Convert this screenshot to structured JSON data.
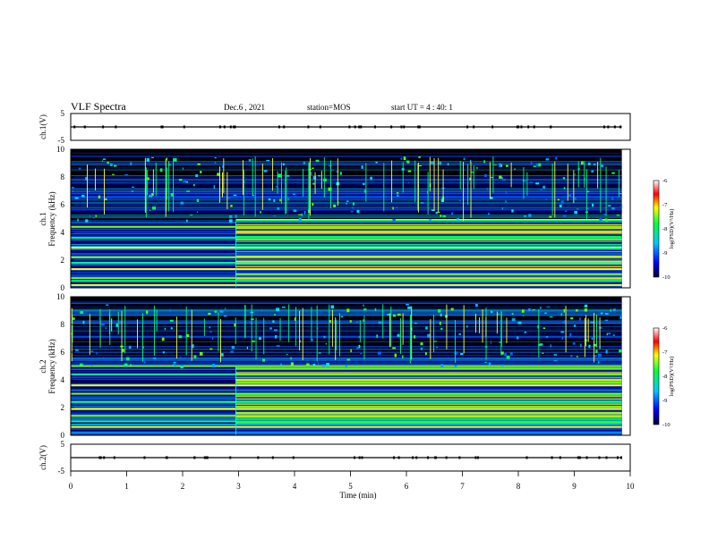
{
  "header": {
    "title": "VLF Spectra",
    "date": "Dec.6 , 2021",
    "station": "station=MOS",
    "start_ut": "start UT =  4 : 40: 1"
  },
  "chart_data": {
    "type": "heatmap",
    "xlabel": "Time (min)",
    "x_ticks": [
      "0",
      "1",
      "2",
      "3",
      "4",
      "5",
      "6",
      "7",
      "8",
      "9",
      "10"
    ],
    "xlim": [
      0,
      10
    ],
    "data_end_min": 9.85,
    "transition_min": 2.95,
    "panels": [
      {
        "id": "ch1_waveform",
        "ylabel": "ch.1(V)",
        "y_ticks": [
          "5",
          "-5"
        ],
        "ylim": [
          -5,
          5
        ],
        "baseline": 0
      },
      {
        "id": "ch1_spectrogram",
        "ylabel": "ch.1\nFrequency (kHz)",
        "y_ticks": [
          "0",
          "2",
          "4",
          "6",
          "8",
          "10"
        ],
        "ylim": [
          0,
          10
        ],
        "colorbar": {
          "label": "log(PSD)(V²/Hz)",
          "ticks": [
            "-6",
            "-7",
            "-8",
            "-9",
            "-10"
          ],
          "range": [
            -10,
            -6
          ]
        },
        "strong_lines_khz": [
          0.2,
          0.5,
          0.7,
          1.35,
          1.8,
          2.2,
          2.9,
          3.6,
          4.4
        ],
        "sferic_band_khz": [
          4.8,
          9.5
        ]
      },
      {
        "id": "ch2_spectrogram",
        "ylabel": "ch.2\nFrequency (kHz)",
        "y_ticks": [
          "0",
          "2",
          "4",
          "6",
          "8",
          "10"
        ],
        "ylim": [
          0,
          10
        ],
        "colorbar": {
          "label": "log(PSD)(V²/Hz)",
          "ticks": [
            "-6",
            "-7",
            "-8",
            "-9",
            "-10"
          ],
          "range": [
            -10,
            -6
          ]
        },
        "strong_lines_khz": [
          0.6,
          1.0,
          1.4,
          1.9,
          2.4,
          3.0,
          3.6,
          4.4,
          5.0
        ],
        "sferic_band_khz": [
          5.0,
          9.5
        ]
      },
      {
        "id": "ch2_waveform",
        "ylabel": "ch.2(V)",
        "y_ticks": [
          "5",
          "-5"
        ],
        "ylim": [
          -5,
          5
        ],
        "baseline": 0
      }
    ]
  }
}
